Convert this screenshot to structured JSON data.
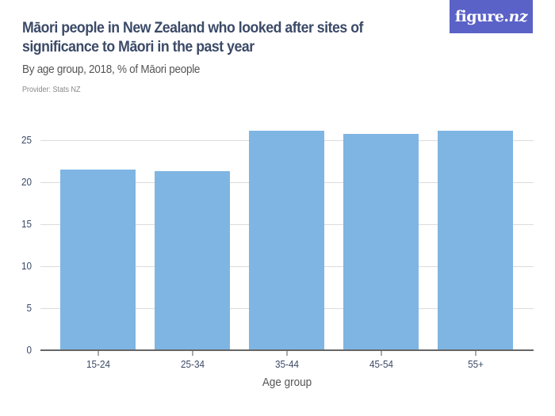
{
  "header": {
    "title": "Māori people in New Zealand who looked after sites of significance to Māori in the past year",
    "subtitle": "By age group, 2018, % of Māori people",
    "provider": "Provider: Stats NZ"
  },
  "logo": {
    "text_main": "figure.",
    "text_accent": "nz",
    "bg_color": "#5a61c7"
  },
  "colors": {
    "bar": "#7eb5e3",
    "grid": "#dcdcdc",
    "axis": "#666666",
    "text": "#3b4a67"
  },
  "chart_data": {
    "type": "bar",
    "title": "Māori people in New Zealand who looked after sites of significance to Māori in the past year",
    "subtitle": "By age group, 2018, % of Māori people",
    "categories": [
      "15-24",
      "25-34",
      "35-44",
      "45-54",
      "55+"
    ],
    "values": [
      21.5,
      21.3,
      26.1,
      25.8,
      26.1
    ],
    "xlabel": "Age group",
    "ylabel": "",
    "ylim": [
      0,
      25
    ],
    "yticks": [
      0,
      5,
      10,
      15,
      20,
      25
    ],
    "grid": true,
    "legend": null
  }
}
